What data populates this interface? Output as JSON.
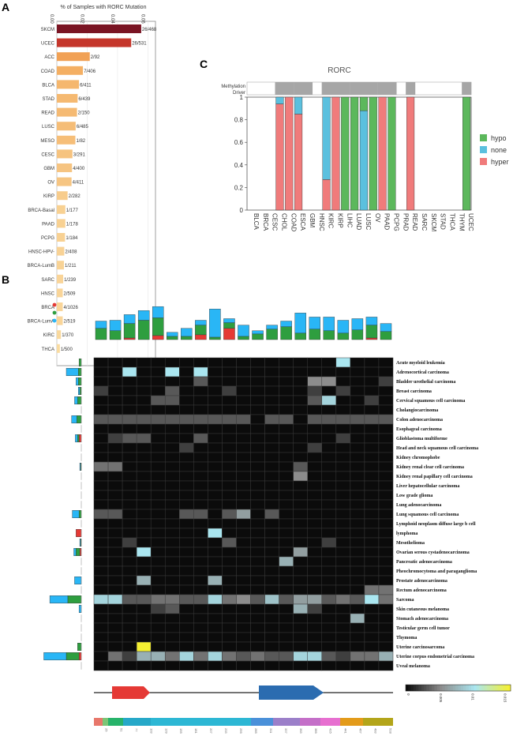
{
  "panels": {
    "a": "A",
    "b": "B",
    "c": "C"
  },
  "chart_data": [
    {
      "type": "bar",
      "panel": "A",
      "orientation": "horizontal",
      "title": "% of Samples with RORC Mutation",
      "xlim": [
        0,
        6.5
      ],
      "ticks": [
        "0.00",
        "0.02",
        "0.04",
        "0.06"
      ],
      "tick_values": [
        0,
        2,
        4,
        6
      ],
      "categories": [
        "SKCM",
        "UCEC",
        "ACC",
        "COAD",
        "BLCA",
        "STAD",
        "READ",
        "LUSC",
        "MESO",
        "CESC",
        "GBM",
        "OV",
        "KIRP",
        "BRCA-Basal",
        "PAAD",
        "PCPG",
        "HNSC-HPV-",
        "BRCA-LumB",
        "SARC",
        "HNSC",
        "BRCA",
        "BRCA-LumA",
        "KIRC",
        "THCA"
      ],
      "labels": [
        "26/468",
        "26/531",
        "2/92",
        "7/406",
        "6/411",
        "6/439",
        "2/150",
        "6/485",
        "1/82",
        "3/291",
        "4/400",
        "4/411",
        "2/282",
        "1/177",
        "1/178",
        "1/184",
        "2/408",
        "1/211",
        "1/239",
        "2/509",
        "4/1026",
        "2/519",
        "1/370",
        "1/500"
      ],
      "values": [
        5.56,
        4.9,
        2.17,
        1.72,
        1.46,
        1.37,
        1.33,
        1.24,
        1.22,
        1.03,
        1.0,
        0.97,
        0.71,
        0.56,
        0.56,
        0.54,
        0.49,
        0.47,
        0.42,
        0.39,
        0.39,
        0.39,
        0.27,
        0.2
      ]
    },
    {
      "type": "bar",
      "panel": "C",
      "stacked": true,
      "title": "RORC",
      "track_labels": [
        "Methylation",
        "Driver"
      ],
      "ylim": [
        0,
        1
      ],
      "yticks": [
        "0",
        "0.2",
        "0.4",
        "0.6",
        "0.8",
        "1"
      ],
      "categories": [
        "BLCA",
        "BRCA",
        "CESC",
        "CHOL",
        "COAD",
        "ESCA",
        "GBM",
        "HNSC",
        "KIRC",
        "KIRP",
        "LIHC",
        "LUAD",
        "LUSC",
        "OV",
        "PAAD",
        "PCPG",
        "PRAD",
        "READ",
        "SARC",
        "SKCM",
        "STAD",
        "THCA",
        "THYM",
        "UCEC"
      ],
      "legend": [
        "hypo",
        "none",
        "hyper"
      ],
      "colors": {
        "hypo": "#5cb85c",
        "none": "#5bc0de",
        "hyper": "#f07b7b"
      },
      "series": [
        {
          "name": "hyper",
          "values": [
            0,
            0,
            0,
            0.94,
            1,
            0.85,
            0,
            0,
            0.27,
            1,
            0,
            0,
            0,
            0,
            1,
            0,
            0,
            1,
            0,
            0,
            0,
            0,
            0,
            0
          ]
        },
        {
          "name": "none",
          "values": [
            0,
            0,
            0,
            0.06,
            0,
            0.15,
            0,
            0,
            0.73,
            0,
            0,
            0,
            0.88,
            0,
            0,
            0,
            0,
            0,
            0,
            0,
            0,
            0,
            0,
            0
          ]
        },
        {
          "name": "hypo",
          "values": [
            0,
            0,
            0,
            0,
            0,
            0,
            0,
            0,
            0,
            0,
            1,
            1,
            0.12,
            1,
            0,
            1,
            0,
            0,
            0,
            0,
            0,
            0,
            0,
            1
          ]
        }
      ],
      "methylation_track": [
        0,
        0,
        0,
        1,
        1,
        1,
        1,
        0,
        1,
        1,
        1,
        1,
        1,
        1,
        1,
        1,
        0,
        1,
        0,
        0,
        0,
        0,
        0,
        1
      ]
    },
    {
      "type": "heatmap",
      "panel": "B",
      "rows": [
        "Acute myeloid leukemia",
        "Adrenocortical carcinoma",
        "Bladder urothelial carcinoma",
        "Breast carcinoma",
        "Cervical squamous cell carcinoma",
        "Cholangiocarcinoma",
        "Colon adenocarcinoma",
        "Esophageal carcinoma",
        "Glioblastoma multiforme",
        "Head and neck squamous cell carcinoma",
        "Kidney chromophobe",
        "Kidney renal clear cell carcinoma",
        "Kidney renal papillary cell carcinoma",
        "Liver hepatocellular carcinoma",
        "Low grade glioma",
        "Lung adenocarcinoma",
        "Lung squamous cell carcinoma",
        "Lymphoid neoplasm diffuse large b cell",
        "lymphoma",
        "Mesothelioma",
        "Ovarian serous cystadenocarcinoma",
        "Pancreatic adenocarcinoma",
        "Pheochromocytoma and paraganglioma",
        "Prostate adenocarcinoma",
        "Rectum adenocarcinoma",
        "Sarcoma",
        "Skin cutaneous melanoma",
        "Stomach adenocarcinoma",
        "Testicular germ cell tumor",
        "Thymoma",
        "Uterine carcinosarcoma",
        "Uterine corpus endometrial carcinoma",
        "Uveal melanoma"
      ],
      "columns": 21,
      "color_scale": {
        "min": 0,
        "max": 0.015,
        "ticks": [
          "0",
          "0.005",
          "0.01",
          "0.015"
        ]
      },
      "matrix": [
        [
          0,
          0,
          0,
          0,
          0,
          0,
          0,
          0,
          0,
          0,
          0,
          0,
          0,
          0,
          0,
          0,
          0,
          0.01,
          0,
          0,
          0
        ],
        [
          0,
          0,
          0.01,
          0,
          0,
          0.01,
          0,
          0.01,
          0,
          0,
          0,
          0,
          0,
          0,
          0,
          0,
          0,
          0,
          0,
          0,
          0
        ],
        [
          0,
          0,
          0,
          0,
          0,
          0,
          0,
          0.003,
          0,
          0,
          0,
          0,
          0,
          0,
          0,
          0.005,
          0.005,
          0,
          0,
          0,
          0.002
        ],
        [
          0.002,
          0,
          0,
          0,
          0,
          0.003,
          0,
          0,
          0,
          0.002,
          0,
          0,
          0,
          0,
          0,
          0.002,
          0,
          0.002,
          0,
          0,
          0
        ],
        [
          0,
          0,
          0,
          0,
          0.003,
          0.003,
          0,
          0,
          0,
          0,
          0,
          0,
          0,
          0,
          0,
          0.003,
          0.009,
          0,
          0,
          0.002,
          0
        ],
        [
          0,
          0,
          0,
          0,
          0,
          0,
          0,
          0,
          0,
          0,
          0,
          0,
          0,
          0,
          0,
          0,
          0,
          0,
          0,
          0,
          0
        ],
        [
          0.003,
          0.003,
          0.003,
          0.003,
          0.003,
          0.003,
          0.003,
          0.003,
          0.003,
          0.003,
          0.003,
          0,
          0.003,
          0.003,
          0,
          0.003,
          0.003,
          0.003,
          0.003,
          0.003,
          0.003
        ],
        [
          0,
          0,
          0,
          0,
          0,
          0,
          0,
          0,
          0,
          0,
          0,
          0,
          0,
          0,
          0,
          0,
          0,
          0,
          0,
          0,
          0
        ],
        [
          0,
          0.002,
          0.003,
          0.003,
          0,
          0,
          0,
          0.003,
          0,
          0,
          0,
          0,
          0,
          0,
          0,
          0,
          0,
          0.002,
          0,
          0,
          0
        ],
        [
          0,
          0,
          0,
          0,
          0,
          0,
          0.002,
          0,
          0,
          0,
          0,
          0,
          0,
          0,
          0,
          0.002,
          0,
          0,
          0,
          0,
          0
        ],
        [
          0,
          0,
          0,
          0,
          0,
          0,
          0,
          0,
          0,
          0,
          0,
          0,
          0,
          0,
          0,
          0,
          0,
          0,
          0,
          0,
          0
        ],
        [
          0.004,
          0.004,
          0,
          0,
          0,
          0,
          0,
          0,
          0,
          0,
          0,
          0,
          0,
          0,
          0.003,
          0,
          0,
          0,
          0,
          0,
          0
        ],
        [
          0,
          0,
          0,
          0,
          0,
          0,
          0,
          0,
          0,
          0,
          0,
          0,
          0,
          0,
          0.005,
          0,
          0,
          0,
          0,
          0,
          0
        ],
        [
          0,
          0,
          0,
          0,
          0,
          0,
          0,
          0,
          0,
          0,
          0,
          0,
          0,
          0,
          0,
          0,
          0,
          0,
          0,
          0,
          0
        ],
        [
          0,
          0,
          0,
          0,
          0,
          0,
          0,
          0,
          0,
          0,
          0,
          0,
          0,
          0,
          0,
          0,
          0,
          0,
          0,
          0,
          0
        ],
        [
          0,
          0,
          0,
          0,
          0,
          0,
          0,
          0,
          0,
          0,
          0,
          0,
          0,
          0,
          0,
          0,
          0,
          0,
          0,
          0,
          0
        ],
        [
          0.003,
          0.003,
          0,
          0,
          0,
          0,
          0.003,
          0.003,
          0,
          0.003,
          0.006,
          0,
          0.003,
          0,
          0,
          0,
          0,
          0,
          0,
          0,
          0
        ],
        [
          0,
          0,
          0,
          0,
          0,
          0,
          0,
          0,
          0,
          0,
          0,
          0,
          0,
          0,
          0,
          0,
          0,
          0,
          0,
          0,
          0
        ],
        [
          0,
          0,
          0,
          0,
          0,
          0,
          0,
          0,
          0.01,
          0,
          0,
          0,
          0,
          0,
          0,
          0,
          0,
          0,
          0,
          0,
          0
        ],
        [
          0,
          0,
          0.002,
          0,
          0,
          0,
          0,
          0,
          0,
          0.003,
          0,
          0,
          0,
          0,
          0,
          0,
          0.002,
          0,
          0,
          0,
          0
        ],
        [
          0,
          0,
          0,
          0.01,
          0,
          0,
          0,
          0,
          0,
          0,
          0,
          0,
          0,
          0,
          0.006,
          0,
          0,
          0,
          0,
          0,
          0
        ],
        [
          0,
          0,
          0,
          0,
          0,
          0,
          0,
          0,
          0,
          0,
          0,
          0,
          0,
          0.007,
          0,
          0,
          0,
          0,
          0,
          0,
          0
        ],
        [
          0,
          0,
          0,
          0,
          0,
          0,
          0,
          0,
          0,
          0,
          0,
          0,
          0,
          0,
          0,
          0,
          0,
          0,
          0,
          0,
          0
        ],
        [
          0,
          0,
          0,
          0.007,
          0,
          0,
          0,
          0,
          0.007,
          0,
          0,
          0,
          0,
          0,
          0,
          0,
          0,
          0,
          0,
          0,
          0
        ],
        [
          0,
          0,
          0,
          0,
          0,
          0,
          0,
          0,
          0,
          0,
          0,
          0,
          0,
          0,
          0,
          0,
          0,
          0,
          0,
          0.004,
          0.004
        ],
        [
          0.009,
          0.009,
          0.003,
          0.003,
          0.004,
          0.004,
          0.003,
          0.003,
          0.009,
          0.004,
          0.005,
          0.003,
          0.008,
          0.003,
          0.006,
          0.006,
          0.003,
          0.004,
          0.003,
          0.01,
          0.004
        ],
        [
          0,
          0,
          0,
          0,
          0.002,
          0.003,
          0,
          0,
          0,
          0,
          0,
          0,
          0,
          0,
          0.007,
          0.002,
          0,
          0,
          0,
          0,
          0
        ],
        [
          0,
          0,
          0,
          0,
          0,
          0,
          0,
          0,
          0,
          0,
          0,
          0,
          0,
          0,
          0,
          0,
          0,
          0,
          0.007,
          0,
          0
        ],
        [
          0,
          0,
          0,
          0,
          0,
          0,
          0,
          0,
          0,
          0,
          0,
          0,
          0,
          0,
          0,
          0,
          0,
          0,
          0,
          0,
          0
        ],
        [
          0,
          0,
          0,
          0,
          0,
          0,
          0,
          0,
          0,
          0,
          0,
          0,
          0,
          0,
          0,
          0,
          0,
          0,
          0,
          0,
          0
        ],
        [
          0,
          0,
          0,
          0.015,
          0,
          0,
          0,
          0,
          0,
          0,
          0,
          0,
          0,
          0,
          0,
          0,
          0,
          0,
          0,
          0,
          0
        ],
        [
          0,
          0.004,
          0.002,
          0.007,
          0.007,
          0.004,
          0.009,
          0.004,
          0.009,
          0.004,
          0.003,
          0.004,
          0.003,
          0.003,
          0.009,
          0.009,
          0.003,
          0.002,
          0.004,
          0.004,
          0.007
        ],
        [
          0,
          0,
          0,
          0,
          0,
          0,
          0,
          0,
          0,
          0,
          0,
          0,
          0,
          0,
          0,
          0,
          0,
          0,
          0,
          0,
          0
        ]
      ],
      "top_bars": {
        "blue": [
          9,
          13,
          11,
          12,
          14,
          5,
          10,
          6,
          35,
          5,
          14,
          4,
          5,
          7,
          25,
          15,
          17,
          16,
          14,
          10,
          10
        ],
        "green": [
          14,
          11,
          18,
          24,
          22,
          4,
          4,
          12,
          3,
          7,
          4,
          7,
          13,
          16,
          8,
          13,
          11,
          8,
          12,
          16,
          10
        ],
        "red": [
          0,
          0,
          2,
          0,
          5,
          0,
          0,
          6,
          0,
          14,
          0,
          0,
          0,
          0,
          0,
          0,
          0,
          0,
          0,
          2,
          0
        ]
      },
      "left_bars": {
        "blue": [
          0,
          16,
          3,
          2,
          4,
          0,
          7,
          0,
          3,
          0,
          0,
          1,
          0,
          0,
          0,
          0,
          9,
          0,
          0,
          1,
          3,
          0,
          0,
          9,
          0,
          24,
          3,
          0,
          0,
          0,
          0,
          30,
          0
        ],
        "green": [
          3,
          4,
          4,
          2,
          5,
          0,
          6,
          0,
          2,
          0,
          0,
          1,
          0,
          0,
          0,
          0,
          3,
          0,
          0,
          1,
          5,
          0,
          0,
          0,
          0,
          18,
          0,
          0,
          0,
          0,
          5,
          17,
          0
        ],
        "red": [
          0,
          0,
          0,
          0,
          0,
          0,
          0,
          0,
          3,
          0,
          0,
          0,
          0,
          0,
          0,
          0,
          0,
          0,
          7,
          0,
          2,
          0,
          0,
          0,
          0,
          0,
          0,
          0,
          0,
          0,
          0,
          3,
          0
        ]
      },
      "mutation_dot_colors": [
        "#e53935",
        "#2e9e3f",
        "#29b6f6"
      ],
      "domain_colors": [
        "#e53935",
        "#2b6cb0"
      ],
      "axis_ticks": [
        "25",
        "51",
        "77",
        "103",
        "129",
        "155",
        "181",
        "207",
        "233",
        "259",
        "285",
        "311",
        "337",
        "363",
        "389",
        "415",
        "441",
        "467",
        "493",
        "518"
      ],
      "position_segment_colors": [
        "#e8776b",
        "#7cc576",
        "#27b36a",
        "#26a8c8",
        "#2db7d4",
        "#4a90d9",
        "#9b7fc9",
        "#c46fc8",
        "#e76fd0",
        "#e39b1a",
        "#b3a51a"
      ]
    }
  ]
}
